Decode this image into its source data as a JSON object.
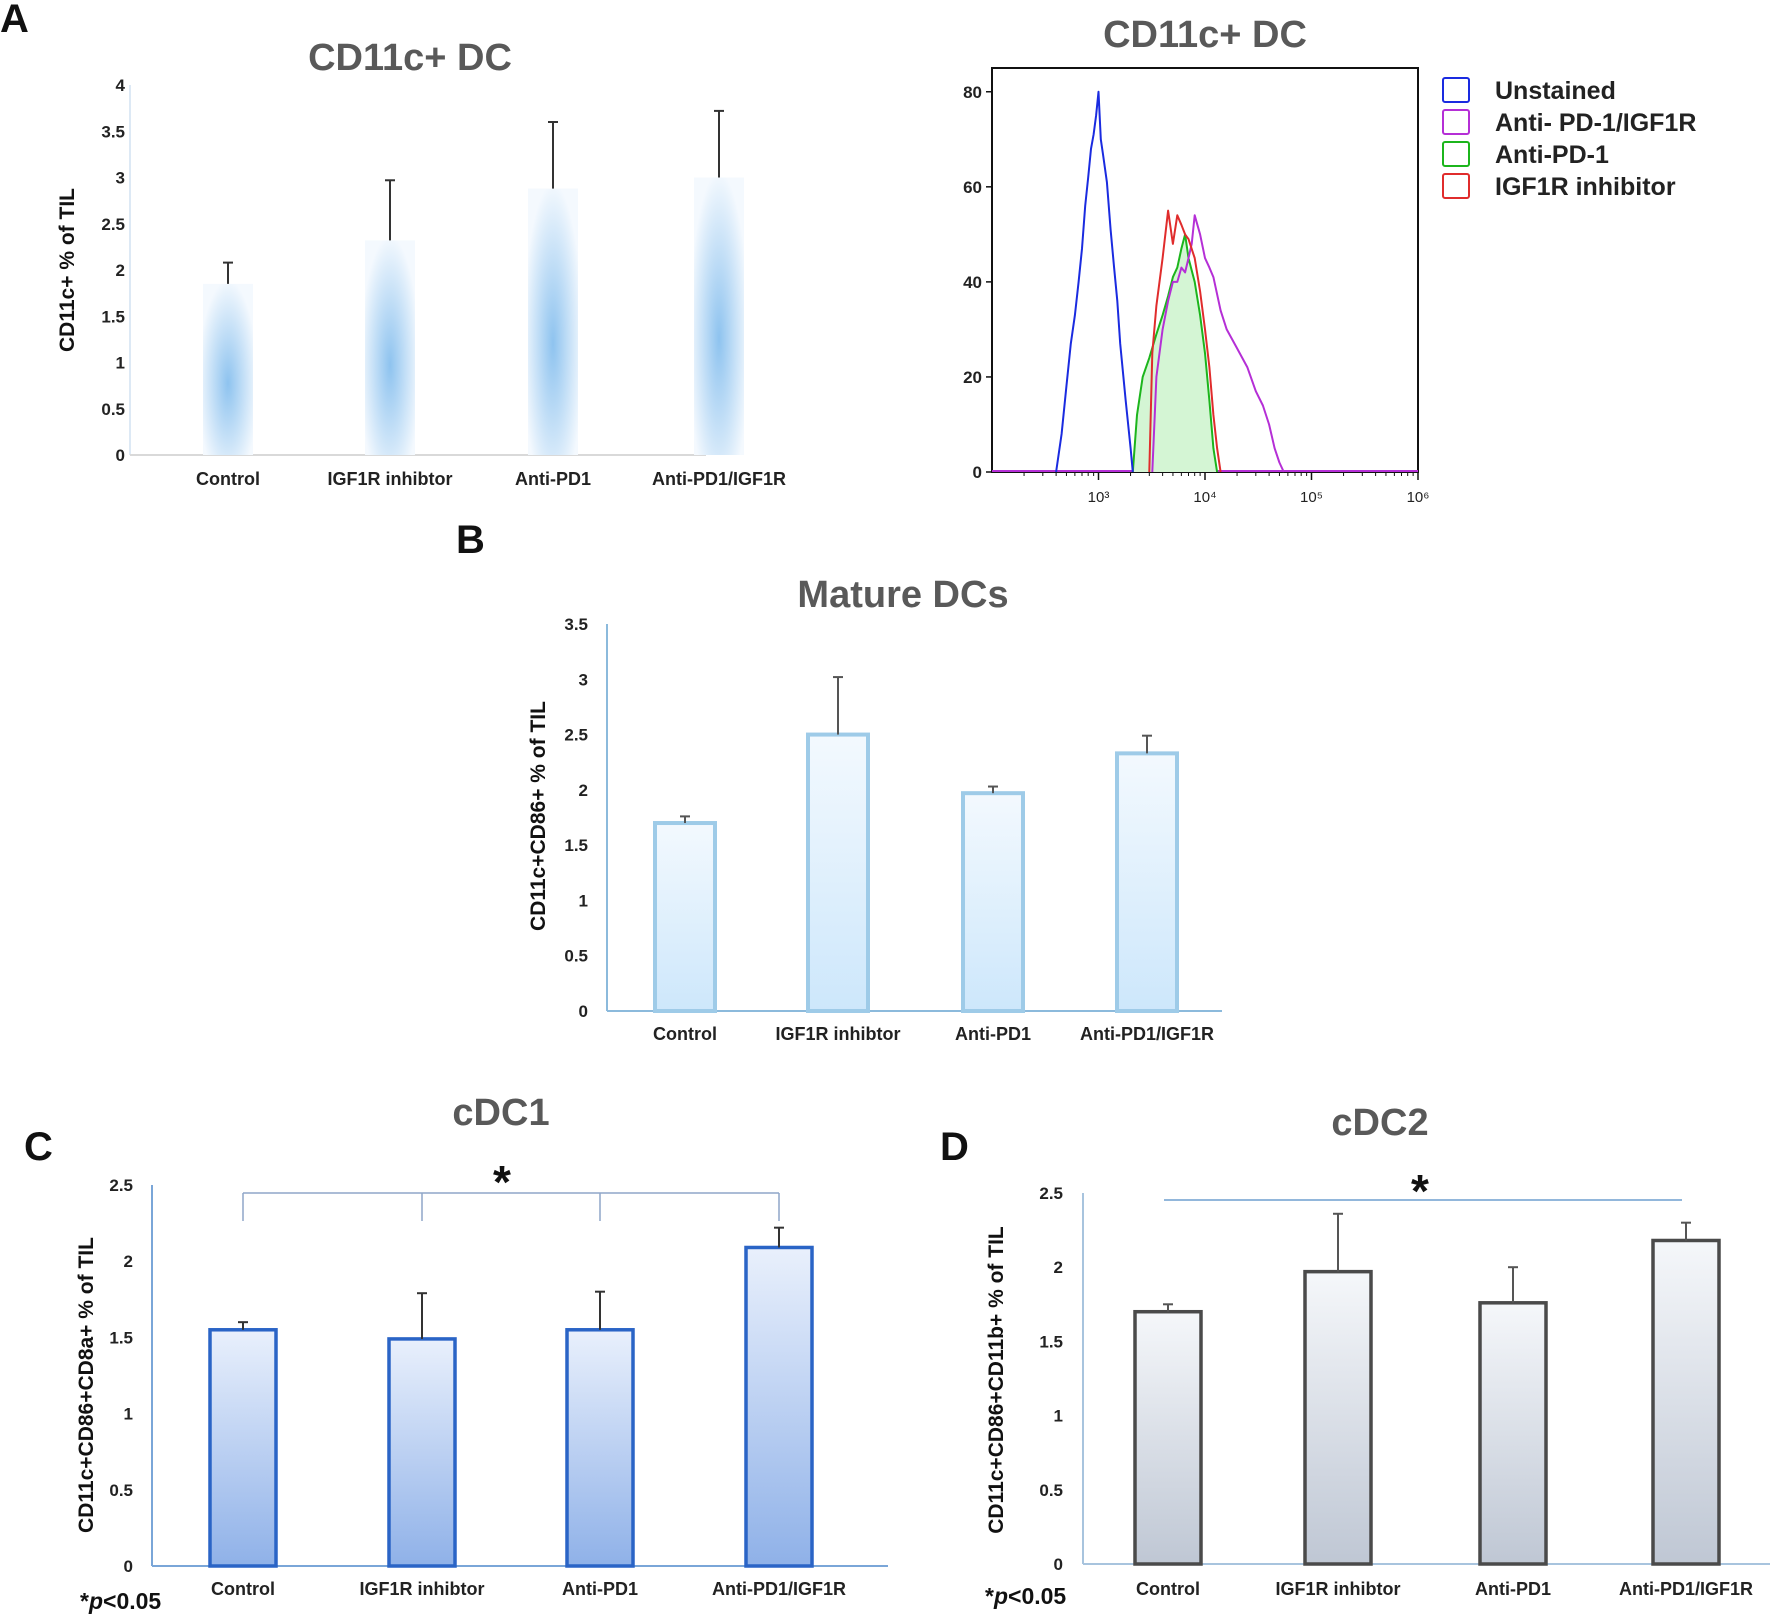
{
  "panel_labels": {
    "a": "A",
    "b": "B",
    "c": "C",
    "d": "D"
  },
  "pvalue_note": {
    "prefix": "*",
    "p": "p",
    "rest": "<0.05"
  },
  "chart_data": [
    {
      "id": "A",
      "type": "bar",
      "title": "CD11c+ DC",
      "xlabel": "",
      "ylabel": "CD11c+ % of TIL",
      "categories": [
        "Control",
        "IGF1R inhibtor",
        "Anti-PD1",
        "Anti-PD1/IGF1R"
      ],
      "values": [
        1.85,
        2.32,
        2.88,
        3.0
      ],
      "errors": [
        0.23,
        0.65,
        0.72,
        0.72
      ],
      "ylim": [
        0,
        4
      ],
      "yticks": [
        "0",
        "0.5",
        "1",
        "1.5",
        "2",
        "2.5",
        "3",
        "3.5",
        "4"
      ],
      "grid": false,
      "style": {
        "fill": "#8ec3ef",
        "edge": "none",
        "gradient": "radial"
      }
    },
    {
      "id": "A-histogram",
      "type": "line",
      "title": "CD11c+ DC",
      "xlabel": "",
      "ylabel": "",
      "x_scale": "log",
      "xlim": [
        100,
        1000000
      ],
      "ylim": [
        0,
        85
      ],
      "xticks": [
        "10³",
        "10⁴",
        "10⁵",
        "10⁶"
      ],
      "yticks": [
        "0",
        "20",
        "40",
        "60",
        "80"
      ],
      "legend_position": "right",
      "series": [
        {
          "name": "Unstained",
          "color": "#1a2be0",
          "fill": "none",
          "x": [
            400,
            450,
            500,
            550,
            600,
            650,
            700,
            750,
            800,
            850,
            900,
            950,
            1000,
            1050,
            1100,
            1200,
            1300,
            1400,
            1500,
            1600,
            1800,
            2000,
            2100
          ],
          "y": [
            0,
            8,
            18,
            27,
            33,
            40,
            47,
            56,
            62,
            68,
            71,
            75,
            80,
            70,
            67,
            61,
            51,
            43,
            36,
            27,
            15,
            5,
            0
          ]
        },
        {
          "name": "Anti- PD-1/IGF1R",
          "color": "#b52fd6",
          "fill": "none",
          "x": [
            3200,
            3500,
            4000,
            4500,
            5000,
            5500,
            6000,
            6500,
            7000,
            7500,
            8000,
            9000,
            10000,
            11000,
            12000,
            14000,
            16000,
            20000,
            25000,
            30000,
            35000,
            40000,
            45000,
            50000,
            55000
          ],
          "y": [
            0,
            20,
            30,
            36,
            40,
            40,
            43,
            42,
            45,
            48,
            54,
            50,
            45,
            43,
            41,
            34,
            30,
            26,
            22,
            17,
            14,
            10,
            5,
            2,
            0
          ]
        },
        {
          "name": "Anti-PD-1",
          "color": "#1cb51c",
          "fill": "#d4f5d4",
          "x": [
            2100,
            2300,
            2600,
            3000,
            3500,
            4000,
            4500,
            5000,
            5500,
            6000,
            6500,
            7000,
            8000,
            9000,
            10000,
            11000,
            12000,
            13000
          ],
          "y": [
            0,
            12,
            20,
            24,
            29,
            33,
            37,
            41,
            43,
            47,
            50,
            45,
            40,
            33,
            25,
            15,
            5,
            0
          ]
        },
        {
          "name": "IGF1R inhibitor",
          "color": "#e02c2c",
          "fill": "none",
          "x": [
            3000,
            3200,
            3500,
            4000,
            4500,
            5000,
            5500,
            6000,
            6500,
            7000,
            8000,
            9000,
            10000,
            11000,
            12000,
            13000,
            14000
          ],
          "y": [
            0,
            25,
            35,
            45,
            55,
            48,
            54,
            52,
            50,
            49,
            45,
            38,
            30,
            22,
            12,
            5,
            0
          ]
        }
      ]
    },
    {
      "id": "B",
      "type": "bar",
      "title": "Mature DCs",
      "xlabel": "",
      "ylabel": "CD11c+CD86+ % of TIL",
      "categories": [
        "Control",
        "IGF1R inhibtor",
        "Anti-PD1",
        "Anti-PD1/IGF1R"
      ],
      "values": [
        1.7,
        2.5,
        1.97,
        2.33
      ],
      "errors": [
        0.06,
        0.52,
        0.06,
        0.16
      ],
      "ylim": [
        0,
        3.5
      ],
      "yticks": [
        "0",
        "0.5",
        "1",
        "1.5",
        "2",
        "2.5",
        "3",
        "3.5"
      ],
      "grid": false,
      "style": {
        "fill": "#e7f4fd",
        "edge": "#9ecbe8",
        "gradient": "vertical-light"
      }
    },
    {
      "id": "C",
      "type": "bar",
      "title": "cDC1",
      "xlabel": "",
      "ylabel": "CD11c+CD86+CD8a+ % of TIL",
      "categories": [
        "Control",
        "IGF1R inhibtor",
        "Anti-PD1",
        "Anti-PD1/IGF1R"
      ],
      "values": [
        1.55,
        1.49,
        1.55,
        2.09
      ],
      "errors": [
        0.05,
        0.3,
        0.25,
        0.13
      ],
      "ylim": [
        0,
        2.5
      ],
      "yticks": [
        "0",
        "0.5",
        "1",
        "1.5",
        "2",
        "2.5"
      ],
      "grid": false,
      "significance": {
        "label": "*",
        "from": 0,
        "to": 3,
        "type": "bracket"
      },
      "style": {
        "fill": "#6f9fe0",
        "edge": "#2a64c6",
        "gradient": "vertical-blue"
      }
    },
    {
      "id": "D",
      "type": "bar",
      "title": "cDC2",
      "xlabel": "",
      "ylabel": "CD11c+CD86+CD11b+ % of TIL",
      "categories": [
        "Control",
        "IGF1R inhibtor",
        "Anti-PD1",
        "Anti-PD1/IGF1R"
      ],
      "values": [
        1.7,
        1.97,
        1.76,
        2.18
      ],
      "errors": [
        0.05,
        0.39,
        0.24,
        0.12
      ],
      "ylim": [
        0,
        2.5
      ],
      "yticks": [
        "0",
        "0.5",
        "1",
        "1.5",
        "2",
        "2.5"
      ],
      "grid": false,
      "significance": {
        "label": "*",
        "from": 0,
        "to": 3,
        "type": "line"
      },
      "style": {
        "fill": "#c5cbd6",
        "edge": "#4a4a4a",
        "gradient": "vertical-grey"
      }
    }
  ]
}
